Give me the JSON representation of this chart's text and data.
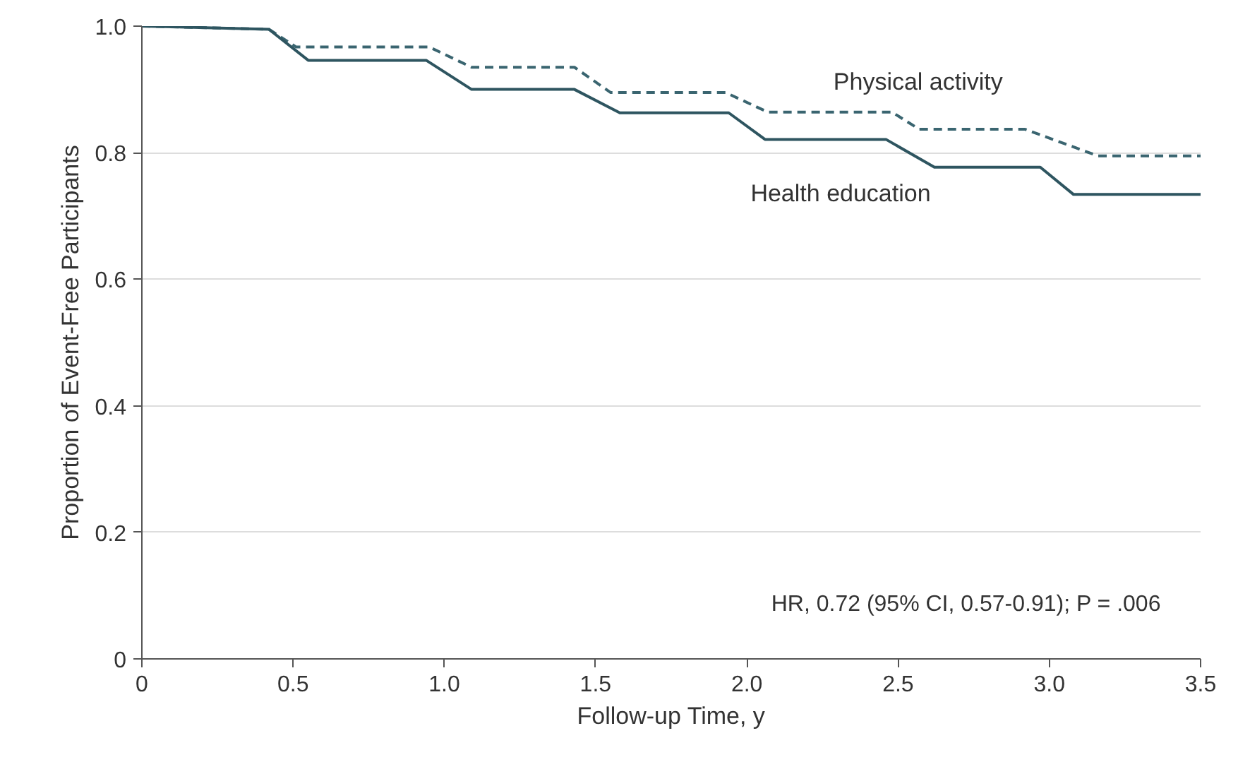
{
  "chart_data": {
    "type": "line",
    "xlabel": "Follow-up Time, y",
    "ylabel": "Proportion of Event-Free Participants",
    "xlim": [
      0,
      3.5
    ],
    "ylim": [
      0,
      1
    ],
    "xticks": [
      0,
      0.5,
      {
        "value": 1,
        "label": "1.0"
      },
      1.5,
      {
        "value": 2,
        "label": "2.0"
      },
      2.5,
      {
        "value": 3,
        "label": "3.0"
      },
      3.5
    ],
    "yticks": [
      0,
      0.2,
      0.4,
      0.6,
      0.8,
      {
        "value": 1,
        "label": "1.0"
      }
    ],
    "grid": "y",
    "legend": false,
    "marker": "none",
    "annotations": [
      "HR, 0.72 (95% CI, 0.57-0.91); P = .006"
    ],
    "series": [
      {
        "name": "Physical activity",
        "color": "#3a6570",
        "line_style": "dashed",
        "x": [
          0,
          0.42,
          0.51,
          0.95,
          1.09,
          1.43,
          1.55,
          1.93,
          2.07,
          2.48,
          2.57,
          2.92,
          3.16,
          3.5
        ],
        "values": [
          1.0,
          0.995,
          0.967,
          0.967,
          0.935,
          0.935,
          0.895,
          0.895,
          0.864,
          0.864,
          0.837,
          0.837,
          0.795,
          0.795
        ]
      },
      {
        "name": "Health education",
        "color": "#2e5560",
        "line_style": "solid",
        "x": [
          0,
          0.42,
          0.55,
          0.94,
          1.09,
          1.43,
          1.58,
          1.94,
          2.06,
          2.46,
          2.62,
          2.97,
          3.08,
          3.5
        ],
        "values": [
          1.0,
          0.995,
          0.946,
          0.946,
          0.9,
          0.9,
          0.863,
          0.863,
          0.821,
          0.821,
          0.777,
          0.777,
          0.734,
          0.734
        ]
      }
    ]
  }
}
